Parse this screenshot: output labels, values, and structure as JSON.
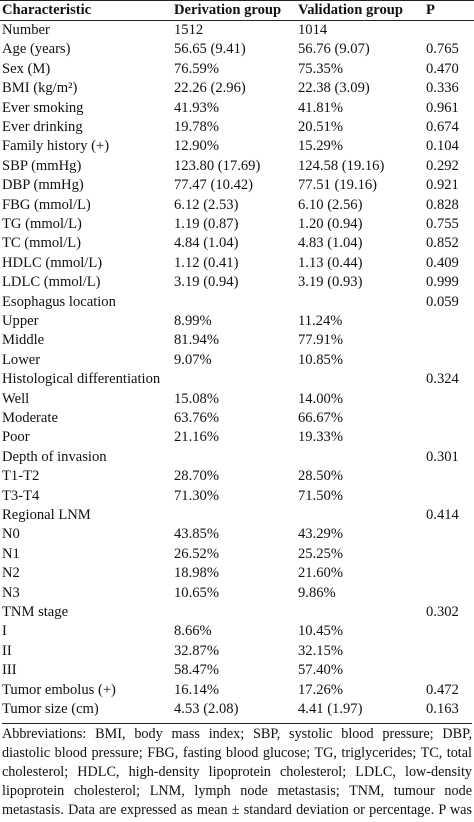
{
  "table": {
    "header": {
      "characteristic": "Characteristic",
      "derivation": "Derivation group",
      "validation": "Validation group",
      "p": "P"
    },
    "rows": [
      {
        "label": "Number",
        "derivation": "1512",
        "validation": "1014"
      },
      {
        "label": "Age (years)",
        "derivation": "56.65 (9.41)",
        "validation": "56.76 (9.07)",
        "p": "0.765"
      },
      {
        "label": "Sex (M)",
        "derivation": "76.59%",
        "validation": "75.35%",
        "p": "0.470"
      },
      {
        "label": "BMI (kg/m²)",
        "derivation": "22.26 (2.96)",
        "validation": "22.38 (3.09)",
        "p": "0.336"
      },
      {
        "label": "Ever smoking",
        "derivation": "41.93%",
        "validation": "41.81%",
        "p": "0.961"
      },
      {
        "label": "Ever drinking",
        "derivation": "19.78%",
        "validation": "20.51%",
        "p": "0.674"
      },
      {
        "label": "Family history (+)",
        "derivation": "12.90%",
        "validation": "15.29%",
        "p": "0.104"
      },
      {
        "label": "SBP (mmHg)",
        "derivation": "123.80 (17.69)",
        "validation": "124.58 (19.16)",
        "p": "0.292"
      },
      {
        "label": "DBP (mmHg)",
        "derivation": "77.47 (10.42)",
        "validation": "77.51 (19.16)",
        "p": "0.921"
      },
      {
        "label": "FBG (mmol/L)",
        "derivation": "6.12 (2.53)",
        "validation": "6.10 (2.56)",
        "p": "0.828"
      },
      {
        "label": "TG (mmol/L)",
        "derivation": "1.19 (0.87)",
        "validation": "1.20 (0.94)",
        "p": "0.755"
      },
      {
        "label": "TC (mmol/L)",
        "derivation": "4.84 (1.04)",
        "validation": "4.83 (1.04)",
        "p": "0.852"
      },
      {
        "label": "HDLC (mmol/L)",
        "derivation": "1.12 (0.41)",
        "validation": "1.13 (0.44)",
        "p": "0.409"
      },
      {
        "label": "LDLC (mmol/L)",
        "derivation": "3.19 (0.94)",
        "validation": "3.19 (0.93)",
        "p": "0.999"
      },
      {
        "label": "Esophagus location",
        "p": "0.059"
      },
      {
        "label": "Upper",
        "derivation": "8.99%",
        "validation": "11.24%"
      },
      {
        "label": "Middle",
        "derivation": "81.94%",
        "validation": "77.91%"
      },
      {
        "label": "Lower",
        "derivation": "9.07%",
        "validation": "10.85%"
      },
      {
        "label": "Histological differentiation",
        "p": "0.324"
      },
      {
        "label": "Well",
        "derivation": "15.08%",
        "validation": "14.00%"
      },
      {
        "label": "Moderate",
        "derivation": "63.76%",
        "validation": "66.67%"
      },
      {
        "label": "Poor",
        "derivation": "21.16%",
        "validation": "19.33%"
      },
      {
        "label": "Depth of invasion",
        "p": "0.301"
      },
      {
        "label": "T1-T2",
        "derivation": "28.70%",
        "validation": "28.50%"
      },
      {
        "label": "T3-T4",
        "derivation": "71.30%",
        "validation": "71.50%"
      },
      {
        "label": "Regional LNM",
        "p": "0.414"
      },
      {
        "label": "N0",
        "derivation": "43.85%",
        "validation": "43.29%"
      },
      {
        "label": "N1",
        "derivation": "26.52%",
        "validation": "25.25%"
      },
      {
        "label": "N2",
        "derivation": "18.98%",
        "validation": "21.60%"
      },
      {
        "label": "N3",
        "derivation": "10.65%",
        "validation": "9.86%"
      },
      {
        "label": "TNM stage",
        "p": "0.302"
      },
      {
        "label": "I",
        "derivation": "8.66%",
        "validation": "10.45%"
      },
      {
        "label": "II",
        "derivation": "32.87%",
        "validation": "32.15%"
      },
      {
        "label": "III",
        "derivation": "58.47%",
        "validation": "57.40%"
      },
      {
        "label": "Tumor embolus (+)",
        "derivation": "16.14%",
        "validation": "17.26%",
        "p": "0.472"
      },
      {
        "label": "Tumor size (cm)",
        "derivation": "4.53 (2.08)",
        "validation": "4.41 (1.97)",
        "p": "0.163"
      }
    ],
    "footnote": "Abbreviations: BMI, body mass index; SBP, systolic blood pressure; DBP, diastolic blood pressure; FBG, fasting blood glucose; TG, triglycerides; TC, total cholesterol; HDLC, high-density lipoprotein cholesterol; LDLC, low-density lipoprotein cholesterol; LNM, lymph node metastasis; TNM, tumour node metastasis. Data are expressed as mean ± standard deviation or percentage. P was calculated by the t-test or the Mann-Whitney U test or the Chisq test, where appropriate."
  }
}
